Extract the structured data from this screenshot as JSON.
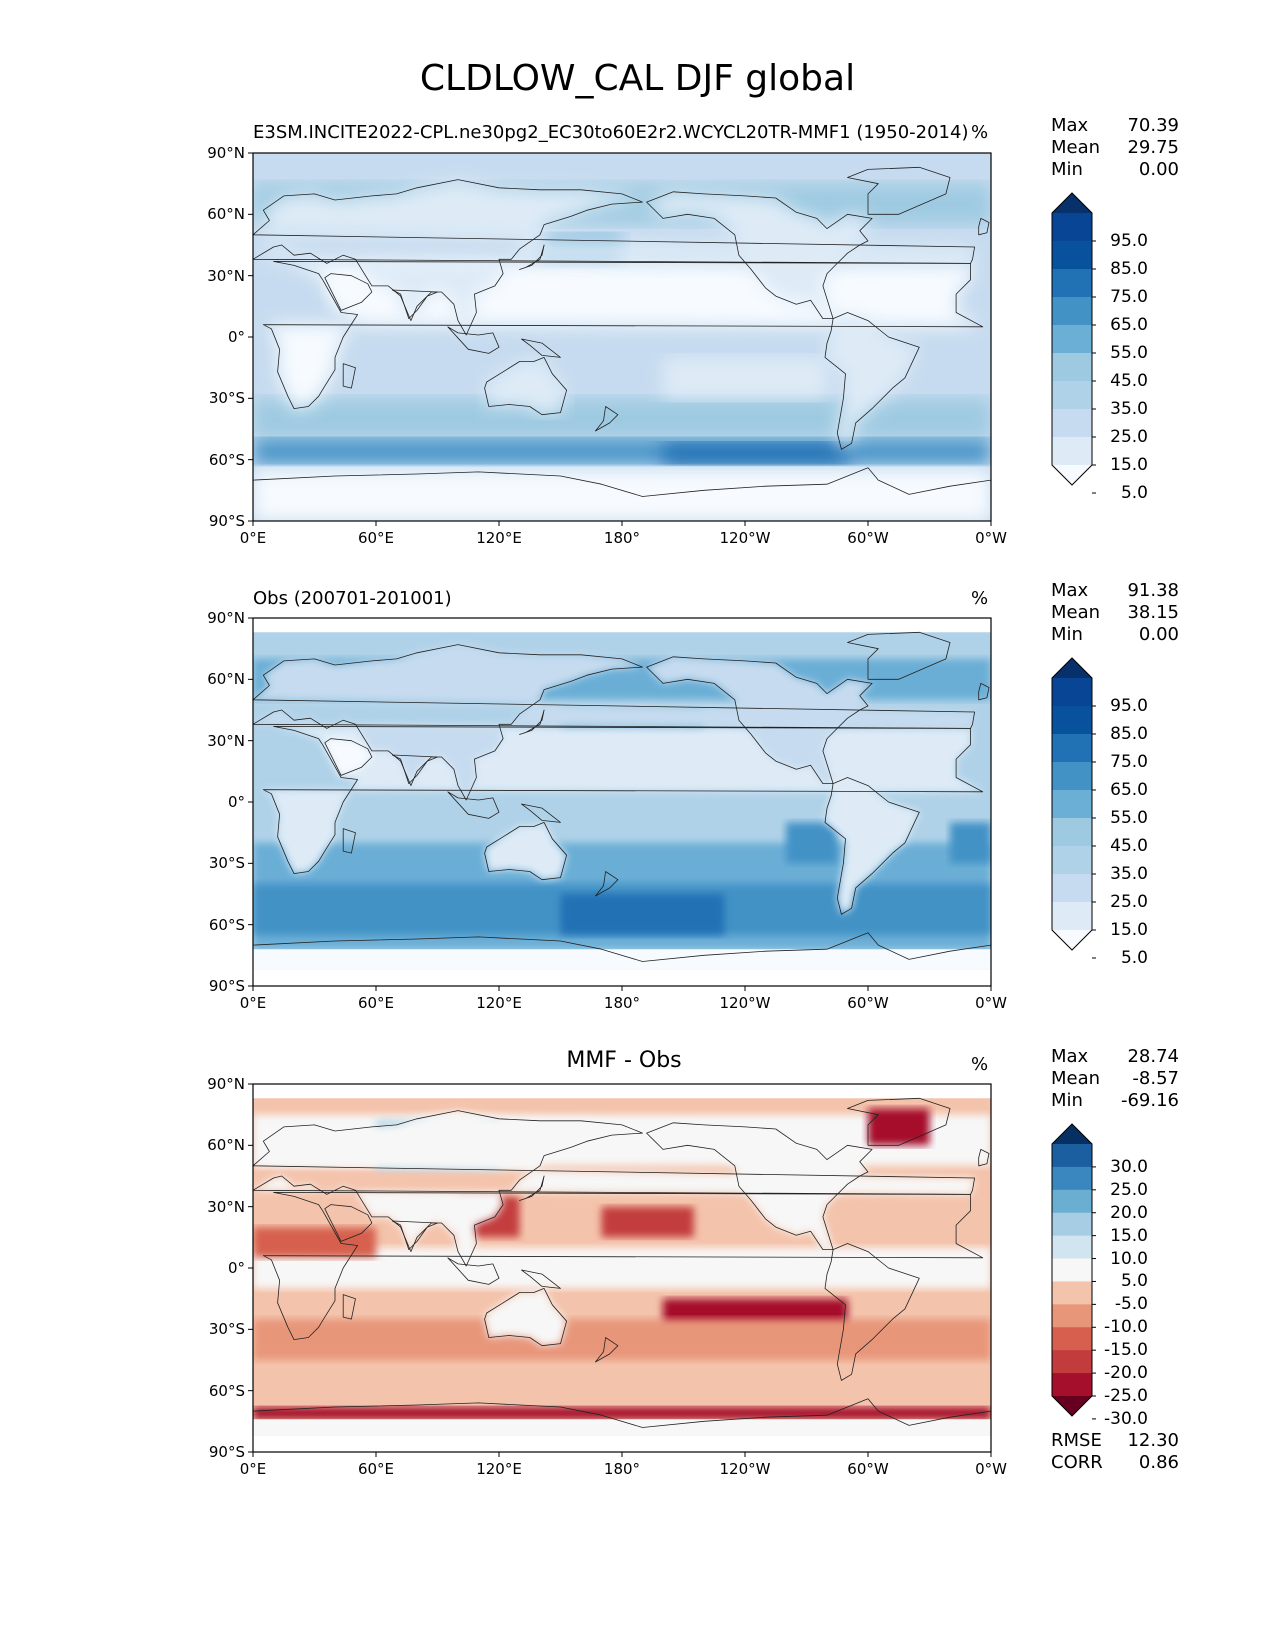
{
  "figure_title": "CLDLOW_CAL DJF global",
  "panels": [
    {
      "id": "model",
      "title": "E3SM.INCITE2022-CPL.ne30pg2_EC30to60E2r2.WCYCL20TR-MMF1 (1950-2014)",
      "unit": "%",
      "stats": [
        {
          "label": "Max",
          "value": "70.39"
        },
        {
          "label": "Mean",
          "value": "29.75"
        },
        {
          "label": "Min",
          "value": "0.00"
        }
      ],
      "colorbar_labels": [
        "95.0",
        "85.0",
        "75.0",
        "65.0",
        "55.0",
        "45.0",
        "35.0",
        "25.0",
        "15.0",
        "5.0"
      ]
    },
    {
      "id": "obs",
      "title": "Obs (200701-201001)",
      "unit": "%",
      "stats": [
        {
          "label": "Max",
          "value": "91.38"
        },
        {
          "label": "Mean",
          "value": "38.15"
        },
        {
          "label": "Min",
          "value": "0.00"
        }
      ],
      "colorbar_labels": [
        "95.0",
        "85.0",
        "75.0",
        "65.0",
        "55.0",
        "45.0",
        "35.0",
        "25.0",
        "15.0",
        "5.0"
      ]
    },
    {
      "id": "diff",
      "title": "MMF - Obs",
      "unit": "%",
      "stats": [
        {
          "label": "Max",
          "value": "28.74"
        },
        {
          "label": "Mean",
          "value": "-8.57"
        },
        {
          "label": "Min",
          "value": "-69.16"
        }
      ],
      "colorbar_labels": [
        "30.0",
        "25.0",
        "20.0",
        "15.0",
        "10.0",
        "5.0",
        "-5.0",
        "-10.0",
        "-15.0",
        "-20.0",
        "-25.0",
        "-30.0"
      ],
      "extra_stats": [
        {
          "label": "RMSE",
          "value": "12.30"
        },
        {
          "label": "CORR",
          "value": "0.86"
        }
      ]
    }
  ],
  "lat_ticks": [
    "90°N",
    "60°N",
    "30°N",
    "0°",
    "30°S",
    "60°S",
    "90°S"
  ],
  "lon_ticks": [
    "0°E",
    "60°E",
    "120°E",
    "180°",
    "120°W",
    "60°W",
    "0°W"
  ],
  "colors": {
    "blues": [
      "#f7fbff",
      "#deebf7",
      "#c6dbef",
      "#b0d2e8",
      "#9ecae1",
      "#6baed6",
      "#4292c6",
      "#2171b5",
      "#08519c",
      "#084594",
      "#08306b"
    ],
    "diverging": [
      "#67001f",
      "#a50f2c",
      "#c33c3d",
      "#d6604d",
      "#e8967a",
      "#f4c3ab",
      "#f7f7f7",
      "#d1e5f0",
      "#a6cde3",
      "#6aaed1",
      "#3a86be",
      "#1c5fa1",
      "#053061"
    ]
  }
}
